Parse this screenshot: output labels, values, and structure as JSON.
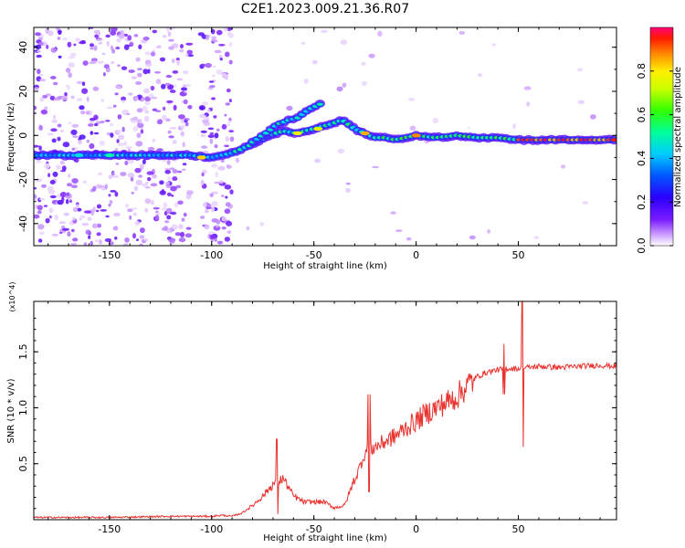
{
  "figure": {
    "title": "C2E1.2023.009.21.36.R07"
  },
  "chart_data": [
    {
      "type": "heatmap",
      "title": "C2E1.2023.009.21.36.R07",
      "xlabel": "Height of straight line (km)",
      "ylabel": "Frequency (Hz)",
      "xlim": [
        -187,
        98
      ],
      "ylim": [
        -50,
        49
      ],
      "xticks": [
        -150,
        -100,
        -50,
        0,
        50
      ],
      "yticks": [
        -40,
        -20,
        0,
        20,
        40
      ],
      "colorbar": {
        "label": "Normalized spectral amplitude",
        "range": [
          0,
          1
        ],
        "ticks": [
          "0.0",
          "0.2",
          "0.4",
          "0.6",
          "0.8"
        ]
      },
      "ridge": {
        "name": "main frequency ridge",
        "x": [
          -187,
          -160,
          -130,
          -110,
          -100,
          -90,
          -80,
          -72,
          -65,
          -58,
          -50,
          -42,
          -36,
          -30,
          -25,
          -20,
          -15,
          -10,
          -5,
          0,
          10,
          20,
          30,
          40,
          50,
          60,
          70,
          80,
          90,
          98
        ],
        "y": [
          -9,
          -9,
          -9,
          -9,
          -10,
          -8,
          -4,
          0,
          2,
          1,
          3,
          5,
          7,
          3,
          1,
          -1,
          -1,
          -2,
          -1,
          0,
          -1,
          0,
          -1,
          -1,
          -2,
          -2,
          -2,
          -2,
          -2,
          -2
        ]
      },
      "branch": {
        "name": "upper branch",
        "x": [
          -80,
          -72,
          -68,
          -62,
          -58,
          -52,
          -45
        ],
        "y": [
          -3,
          2,
          5,
          7,
          8,
          12,
          15
        ]
      }
    },
    {
      "type": "line",
      "xlabel": "Height of straight line (km)",
      "ylabel": "SNR (10 * v/v)",
      "y_multiplier": "(x10^4)",
      "xlim": [
        -187,
        98
      ],
      "ylim": [
        0,
        1.95
      ],
      "xticks": [
        -150,
        -100,
        -50,
        0,
        50
      ],
      "yticks": [
        0.5,
        1.0,
        1.5
      ],
      "series": [
        {
          "name": "SNR",
          "color": "#e8322e",
          "x": [
            -187,
            -150,
            -120,
            -100,
            -95,
            -90,
            -85,
            -80,
            -75,
            -70,
            -65,
            -60,
            -55,
            -50,
            -45,
            -40,
            -35,
            -30,
            -25,
            -20,
            -15,
            -10,
            -5,
            0,
            5,
            10,
            15,
            20,
            25,
            30,
            35,
            40,
            45,
            50,
            55,
            60,
            70,
            80,
            90,
            98
          ],
          "y": [
            0.02,
            0.02,
            0.03,
            0.03,
            0.04,
            0.03,
            0.06,
            0.12,
            0.2,
            0.3,
            0.35,
            0.2,
            0.15,
            0.15,
            0.15,
            0.1,
            0.12,
            0.35,
            0.6,
            0.65,
            0.7,
            0.75,
            0.82,
            0.88,
            0.95,
            1.0,
            1.05,
            1.1,
            1.2,
            1.28,
            1.32,
            1.34,
            1.35,
            1.35,
            1.36,
            1.37,
            1.36,
            1.37,
            1.38,
            1.37
          ],
          "annotations": [
            {
              "x": 52,
              "y_min": 0.65,
              "y_max": 1.95,
              "note": "spike"
            },
            {
              "x": 43,
              "y_min": 1.12,
              "y_max": 1.57,
              "note": "spike"
            },
            {
              "x": -68,
              "y_min": 0.05,
              "y_max": 0.72,
              "note": "burst"
            },
            {
              "x": -23,
              "y_min": 0.25,
              "y_max": 1.12,
              "note": "burst"
            }
          ]
        }
      ]
    }
  ]
}
